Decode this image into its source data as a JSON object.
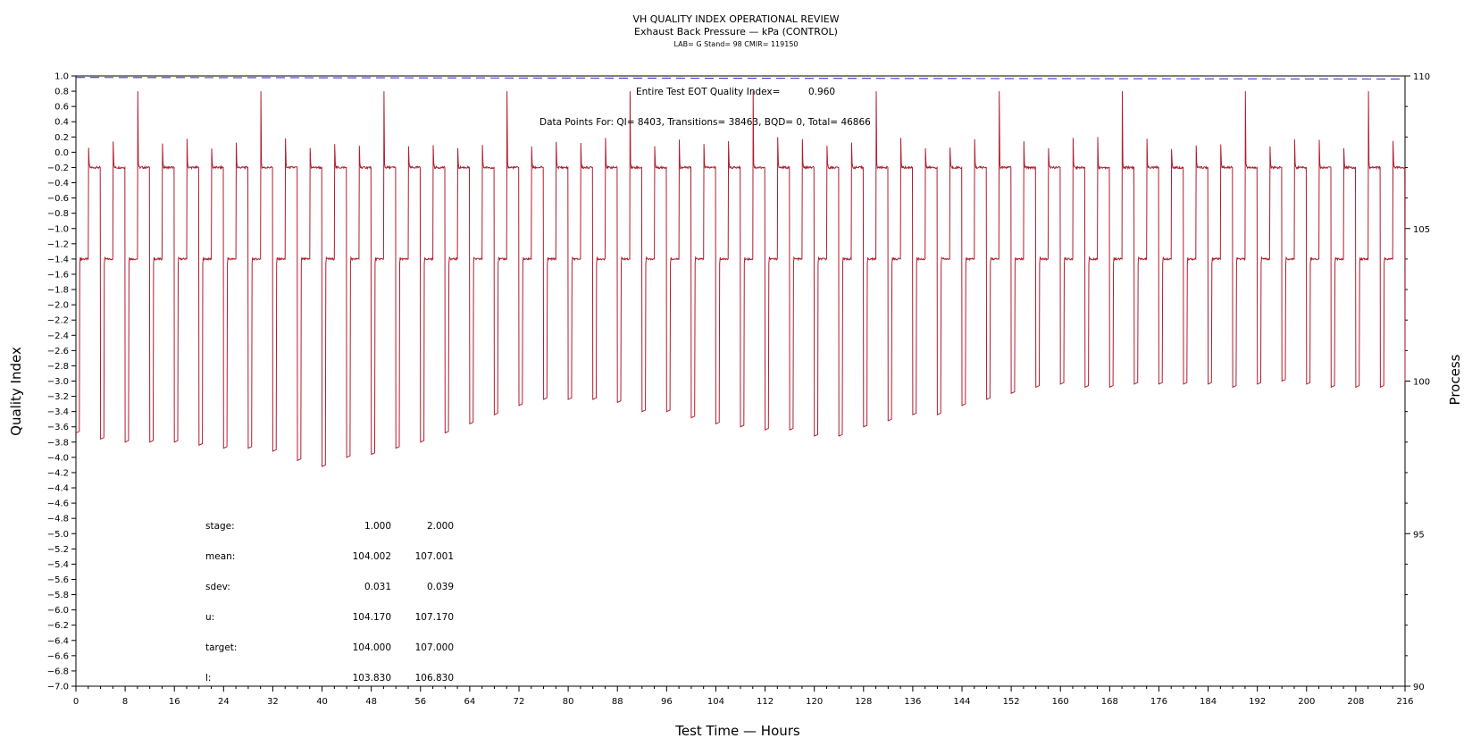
{
  "header": {
    "title": "VH QUALITY INDEX OPERATIONAL REVIEW",
    "subtitle": "Exhaust Back Pressure — kPa (CONTROL)",
    "meta": "LAB= G Stand= 98 CMIR= 119150"
  },
  "annotations": {
    "eot_label": "Entire Test EOT Quality Index=",
    "eot_value": "0.960",
    "points": "Data Points For: QI=  8403, Transitions= 38463, BQD=     0, Total= 46866"
  },
  "stats": {
    "rows": [
      {
        "label": "stage:",
        "v1": "1.000",
        "v2": "2.000"
      },
      {
        "label": "mean:",
        "v1": "104.002",
        "v2": "107.001"
      },
      {
        "label": "sdev:",
        "v1": "0.031",
        "v2": "0.039"
      },
      {
        "label": "u:",
        "v1": "104.170",
        "v2": "107.170"
      },
      {
        "label": "target:",
        "v1": "104.000",
        "v2": "107.000"
      },
      {
        "label": "l:",
        "v1": "103.830",
        "v2": "106.830"
      }
    ]
  },
  "chart_data": {
    "type": "line",
    "xlabel": "Test Time — Hours",
    "ylabel": "Quality Index",
    "y2label": "Process",
    "xlim": [
      0,
      216
    ],
    "ylim": [
      -7.0,
      1.0
    ],
    "y2lim": [
      90,
      110
    ],
    "x_ticks": [
      0,
      8,
      16,
      24,
      32,
      40,
      48,
      56,
      64,
      72,
      80,
      88,
      96,
      104,
      112,
      120,
      128,
      136,
      144,
      152,
      160,
      168,
      176,
      184,
      192,
      200,
      208,
      216
    ],
    "y_ticks": [
      "1.0",
      "0.8",
      "0.6",
      "0.4",
      "0.2",
      "0.0",
      "-0.2",
      "-0.4",
      "-0.6",
      "-0.8",
      "-1.0",
      "-1.2",
      "-1.4",
      "-1.6",
      "-1.8",
      "-2.0",
      "-2.2",
      "-2.4",
      "-2.6",
      "-2.8",
      "-3.0",
      "-3.2",
      "-3.4",
      "-3.6",
      "-3.8",
      "-4.0",
      "-4.2",
      "-4.4",
      "-4.6",
      "-4.8",
      "-5.0",
      "-5.2",
      "-5.4",
      "-5.6",
      "-5.8",
      "-6.0",
      "-6.2",
      "-6.4",
      "-6.6",
      "-6.8",
      "-7.0"
    ],
    "y2_ticks": [
      110,
      105,
      100,
      95,
      90
    ],
    "series": [
      {
        "axis": "left",
        "style": "dashed",
        "color": "#3a3ae0",
        "x": [
          0,
          216
        ],
        "y": [
          0.98,
          0.96
        ]
      },
      {
        "axis": "right",
        "style": "solid",
        "color": "#b01c2e",
        "period_hours": 4,
        "plateau_levels": [
          104.0,
          107.0
        ],
        "cycle_minimum_process": [
          98.3,
          98.1,
          98.0,
          98.0,
          98.0,
          97.9,
          97.8,
          97.8,
          97.7,
          97.4,
          97.2,
          97.5,
          97.6,
          97.8,
          98.0,
          98.3,
          98.6,
          98.9,
          99.2,
          99.4,
          99.4,
          99.4,
          99.3,
          99.0,
          99.0,
          98.8,
          98.6,
          98.5,
          98.4,
          98.4,
          98.2,
          98.2,
          98.5,
          98.7,
          98.9,
          98.9,
          99.2,
          99.4,
          99.6,
          99.8,
          99.9,
          99.8,
          99.8,
          99.9,
          99.9,
          99.9,
          99.9,
          99.8,
          99.9,
          100.0,
          99.9,
          99.8,
          99.8,
          99.8
        ]
      }
    ]
  }
}
